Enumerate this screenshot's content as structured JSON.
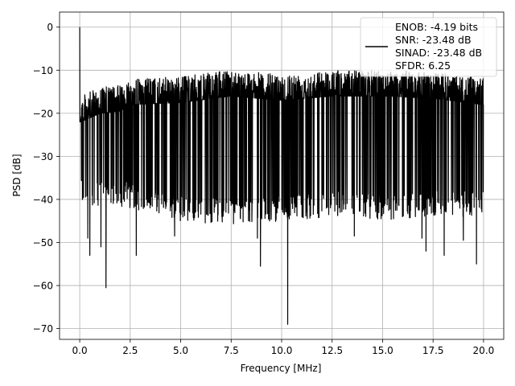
{
  "chart_data": {
    "type": "line",
    "title": "",
    "xlabel": "Frequency [MHz]",
    "ylabel": "PSD [dB]",
    "xlim": [
      -1.0,
      21.0
    ],
    "ylim": [
      -72.5,
      3.5
    ],
    "xticks": [
      0.0,
      2.5,
      5.0,
      7.5,
      10.0,
      12.5,
      15.0,
      17.5,
      20.0
    ],
    "xtick_labels": [
      "0.0",
      "2.5",
      "5.0",
      "7.5",
      "10.0",
      "12.5",
      "15.0",
      "17.5",
      "20.0"
    ],
    "yticks": [
      0,
      -10,
      -20,
      -30,
      -40,
      -50,
      -60,
      -70
    ],
    "ytick_labels": [
      "0",
      "−10",
      "−20",
      "−30",
      "−40",
      "−50",
      "−60",
      "−70"
    ],
    "grid": true,
    "legend_position": "top-right",
    "legend": [
      "ENOB: -4.19 bits",
      "SNR: -23.48 dB",
      "SINAD: -23.48 dB",
      "SFDR: 6.25"
    ],
    "series": [
      {
        "color": "#000000",
        "x_range": [
          0.0,
          20.0
        ],
        "envelope_upper": [
          [
            0.0,
            0.0
          ],
          [
            0.05,
            -16
          ],
          [
            1.0,
            -14
          ],
          [
            2.0,
            -13.5
          ],
          [
            2.5,
            -12
          ],
          [
            5.0,
            -11.5
          ],
          [
            7.5,
            -10
          ],
          [
            10.0,
            -11
          ],
          [
            12.5,
            -10
          ],
          [
            15.0,
            -10
          ],
          [
            17.5,
            -10.5
          ],
          [
            20.0,
            -12
          ]
        ],
        "envelope_lower": [
          [
            0.0,
            -40
          ],
          [
            0.5,
            -44
          ],
          [
            1.0,
            -41
          ],
          [
            2.5,
            -42
          ],
          [
            5.0,
            -45
          ],
          [
            7.5,
            -46
          ],
          [
            10.0,
            -45
          ],
          [
            12.5,
            -44
          ],
          [
            15.0,
            -45
          ],
          [
            17.5,
            -44
          ],
          [
            20.0,
            -44
          ]
        ],
        "notable_dips": [
          [
            0.4,
            -49
          ],
          [
            0.5,
            -53
          ],
          [
            1.05,
            -51
          ],
          [
            1.3,
            -60.5
          ],
          [
            2.8,
            -53
          ],
          [
            4.7,
            -48.5
          ],
          [
            8.8,
            -49
          ],
          [
            8.95,
            -55.5
          ],
          [
            10.3,
            -69
          ],
          [
            13.6,
            -48.5
          ],
          [
            16.95,
            -49
          ],
          [
            17.15,
            -52
          ],
          [
            18.05,
            -53
          ],
          [
            19.0,
            -49.5
          ],
          [
            19.65,
            -55
          ]
        ]
      }
    ]
  }
}
